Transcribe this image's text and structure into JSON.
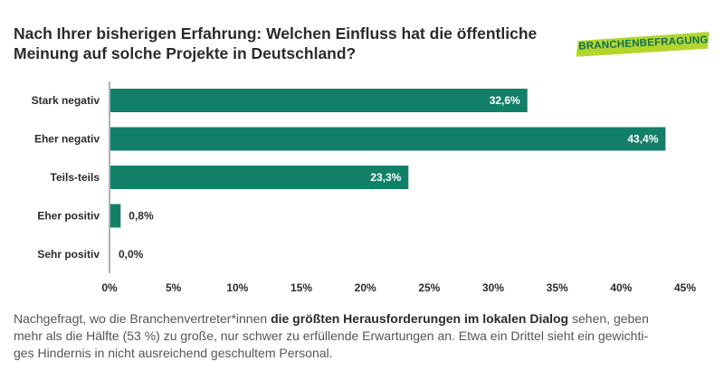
{
  "header": {
    "title_line1": "Nach Ihrer bisherigen Erfahrung: Welchen Einfluss hat die öffentliche",
    "title_line2": "Meinung auf solche Projekte in Deutschland?",
    "badge": "BRANCHENBEFRAGUNG"
  },
  "colors": {
    "bar": "#128069",
    "badge_bg": "#b4d62c",
    "badge_text": "#0c6f5d",
    "axis": "#b0b0b0",
    "label": "#2b2b2b"
  },
  "chart_data": {
    "type": "bar",
    "orientation": "horizontal",
    "categories": [
      "Stark negativ",
      "Eher negativ",
      "Teils-teils",
      "Eher positiv",
      "Sehr positiv"
    ],
    "values": [
      32.6,
      43.4,
      23.3,
      0.8,
      0.0
    ],
    "value_labels": [
      "32,6%",
      "43,4%",
      "23,3%",
      "0,8%",
      "0,0%"
    ],
    "xlim": [
      0,
      45
    ],
    "xticks": [
      0,
      5,
      10,
      15,
      20,
      25,
      30,
      35,
      40,
      45
    ],
    "xtick_labels": [
      "0%",
      "5%",
      "10%",
      "15%",
      "20%",
      "25%",
      "30%",
      "35%",
      "40%",
      "45%"
    ],
    "grid": false,
    "legend": "none"
  },
  "footer": {
    "line1_pre": "Nachgefragt, wo die Branchenvertreter*innen ",
    "line1_bold": "die größten Herausforderungen im lokalen Dialog",
    "line1_post": " sehen, geben",
    "line2": "mehr als die Hälfte (53 %) zu große, nur schwer zu erfüllende Erwartungen an. Etwa ein Drittel sieht ein gewichti-",
    "line3": "ges Hindernis in nicht ausreichend geschultem Personal."
  }
}
